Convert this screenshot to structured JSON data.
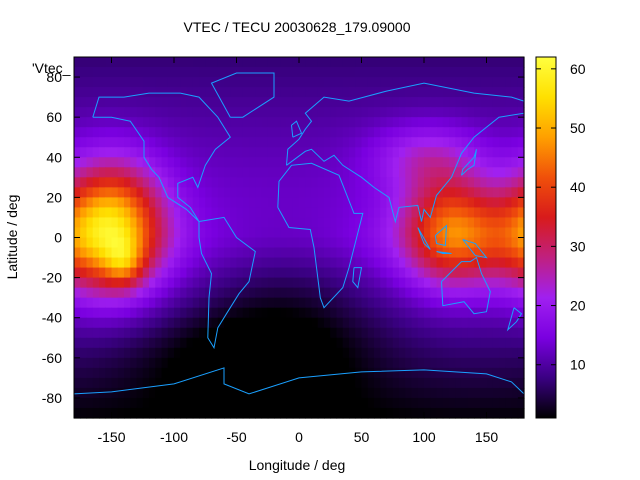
{
  "chart_data": {
    "type": "heatmap",
    "title": "VTEC / TECU 20030628_179.09000",
    "xlabel": "Longitude / deg",
    "ylabel": "Latitude / deg",
    "key_label": "'Vtec_",
    "xlim": [
      -180,
      180
    ],
    "ylim": [
      -90,
      90
    ],
    "xticks": [
      -150,
      -100,
      -50,
      0,
      50,
      100,
      150
    ],
    "yticks": [
      -80,
      -60,
      -40,
      -20,
      0,
      20,
      40,
      60,
      80
    ],
    "colorbar": {
      "min": 1,
      "max": 62,
      "ticks": [
        10,
        20,
        30,
        40,
        50,
        60
      ]
    },
    "palette": [
      "#000000",
      "#3a0082",
      "#7a00e0",
      "#a020f0",
      "#c02080",
      "#d81b1b",
      "#f0500a",
      "#ffa000",
      "#ffe000",
      "#ffff40"
    ],
    "coast_color": "#1aa0ff",
    "blobs": [
      {
        "lon": -150,
        "lat": 5,
        "slon": 28,
        "slat": 22,
        "amp": 38
      },
      {
        "lon": -140,
        "lat": -12,
        "slon": 10,
        "slat": 8,
        "amp": 12
      },
      {
        "lon": 120,
        "lat": 5,
        "slon": 25,
        "slat": 20,
        "amp": 20
      },
      {
        "lon": 150,
        "lat": 0,
        "slon": 45,
        "slat": 16,
        "amp": 14
      },
      {
        "lon": 100,
        "lat": 40,
        "slon": 30,
        "slat": 12,
        "amp": 10
      },
      {
        "lon": -50,
        "lat": -60,
        "slon": 60,
        "slat": 18,
        "amp": -6
      }
    ]
  }
}
